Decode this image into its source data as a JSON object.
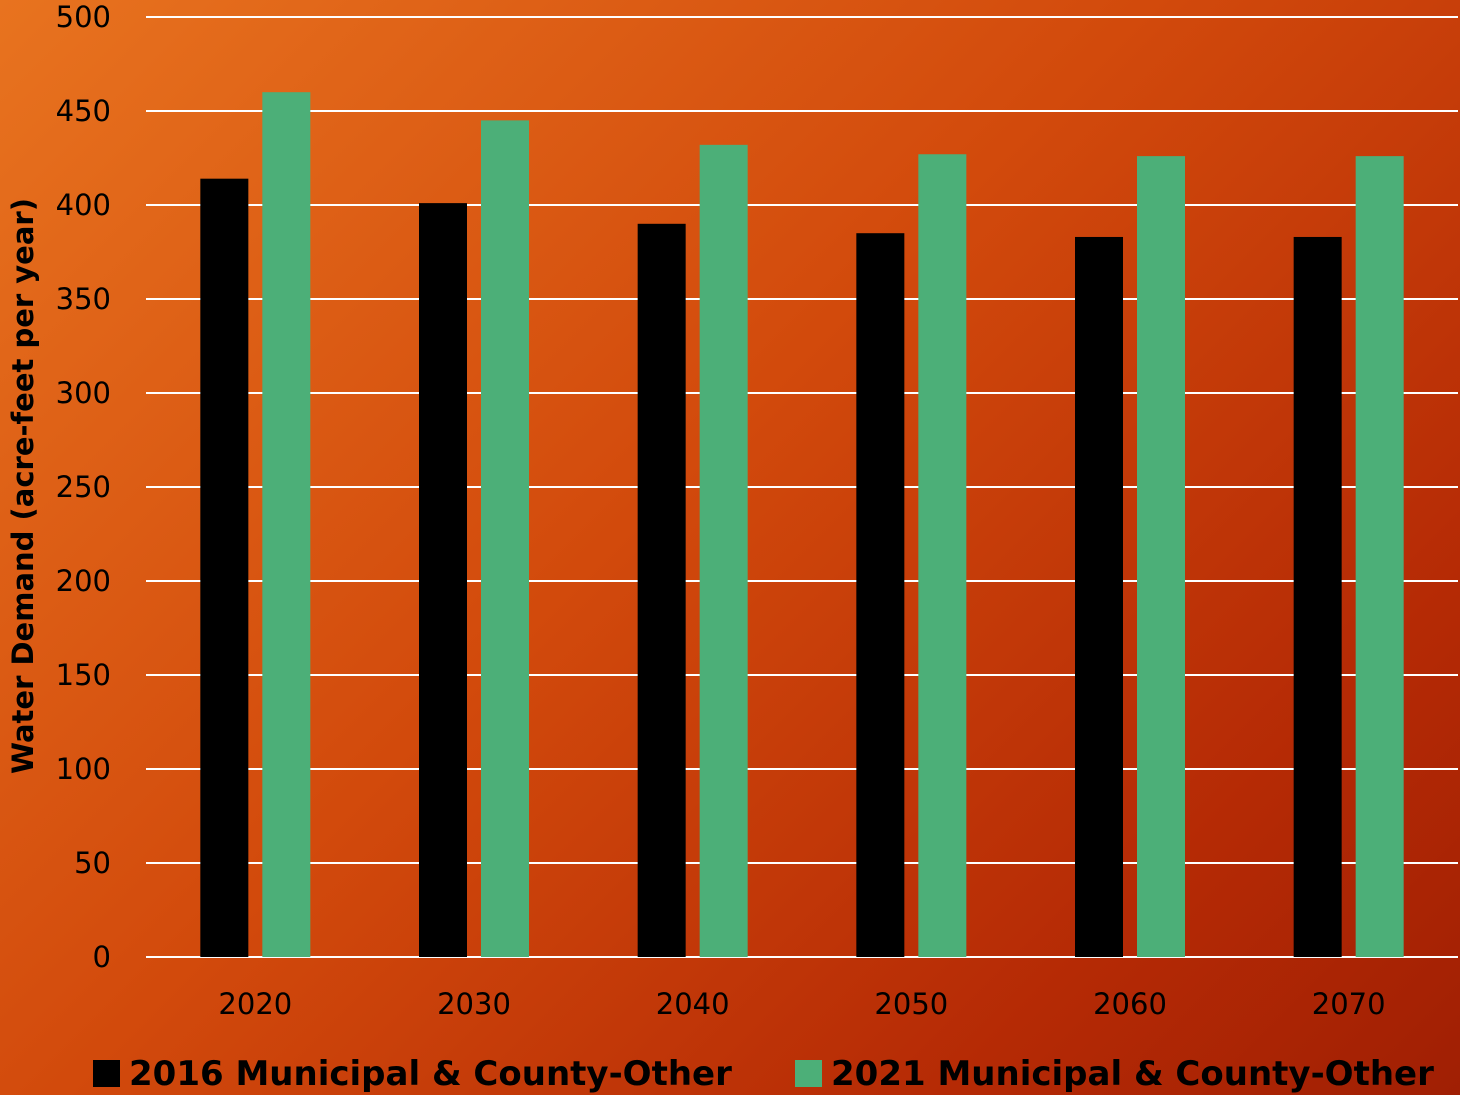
{
  "chart_data": {
    "type": "bar",
    "title": "",
    "xlabel": "",
    "ylabel": "Water Demand (acre-feet per year)",
    "categories": [
      "2020",
      "2030",
      "2040",
      "2050",
      "2060",
      "2070"
    ],
    "series": [
      {
        "name": "2016 Municipal & County-Other",
        "color": "#000000",
        "values": [
          414,
          401,
          390,
          385,
          383,
          383
        ]
      },
      {
        "name": "2021 Municipal & County-Other",
        "color": "#4caf78",
        "values": [
          460,
          445,
          432,
          427,
          426,
          426
        ]
      }
    ],
    "yticks": [
      "0",
      "50",
      "100",
      "150",
      "200",
      "250",
      "300",
      "350",
      "400",
      "450",
      "500"
    ],
    "ylim": [
      0,
      500
    ],
    "grid": true,
    "gridline_color": "#ffffff",
    "legend_position": "bottom"
  }
}
